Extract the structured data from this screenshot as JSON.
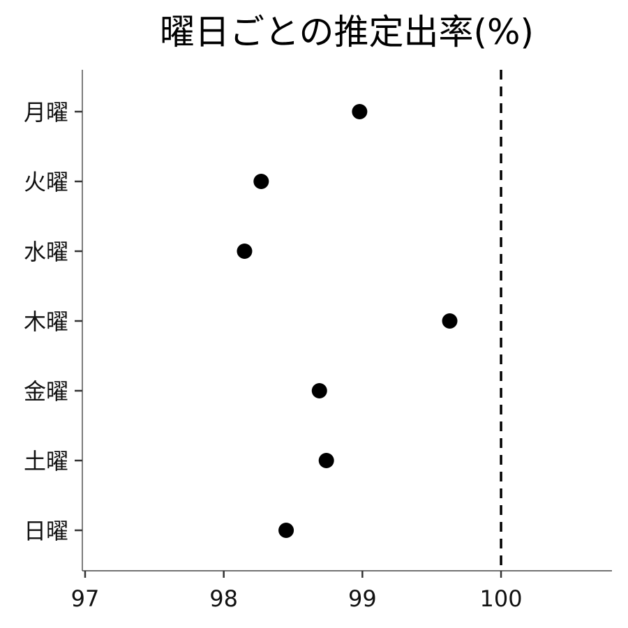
{
  "chart_data": {
    "type": "scatter",
    "title": "曜日ごとの推定出率(%)",
    "xlabel": "",
    "ylabel": "",
    "xlim": [
      96.98,
      100.8
    ],
    "x_ticks": [
      97,
      98,
      99,
      100
    ],
    "categories": [
      "月曜",
      "火曜",
      "水曜",
      "木曜",
      "金曜",
      "土曜",
      "日曜"
    ],
    "values": [
      98.98,
      98.27,
      98.15,
      99.63,
      98.69,
      98.74,
      98.45
    ],
    "reference_line": {
      "x": 100,
      "style": "dashed"
    },
    "grid": false,
    "legend": "none",
    "point_color": "#000000"
  }
}
